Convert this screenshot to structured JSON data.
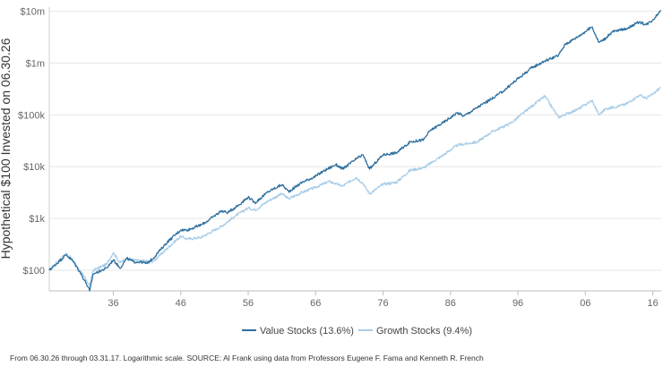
{
  "chart_data": {
    "type": "line",
    "title": "",
    "ylabel": "Hypothetical $100 Invested on 06.30.26",
    "xlabel": "",
    "yscale": "log",
    "ylim": [
      40,
      12000000
    ],
    "xlim": [
      1926.5,
      2017.25
    ],
    "y_ticks": [
      {
        "value": 100,
        "label": "$100"
      },
      {
        "value": 1000,
        "label": "$1k"
      },
      {
        "value": 10000,
        "label": "$10k"
      },
      {
        "value": 100000,
        "label": "$100k"
      },
      {
        "value": 1000000,
        "label": "$1m"
      },
      {
        "value": 10000000,
        "label": "$10m"
      }
    ],
    "x_ticks": [
      {
        "value": 1936,
        "label": "36"
      },
      {
        "value": 1946,
        "label": "46"
      },
      {
        "value": 1956,
        "label": "56"
      },
      {
        "value": 1966,
        "label": "66"
      },
      {
        "value": 1976,
        "label": "76"
      },
      {
        "value": 1986,
        "label": "86"
      },
      {
        "value": 1996,
        "label": "96"
      },
      {
        "value": 2006,
        "label": "06"
      },
      {
        "value": 2016,
        "label": "16"
      }
    ],
    "grid": "horizontal",
    "legend": "bottom-center",
    "series": [
      {
        "name": "Value Stocks (13.6%)",
        "color": "#2e6f9e",
        "x": [
          1926.5,
          1928,
          1929,
          1930,
          1931,
          1932,
          1932.5,
          1933,
          1933.5,
          1935,
          1936,
          1937,
          1938,
          1939,
          1940,
          1941,
          1942,
          1943,
          1944,
          1946,
          1947,
          1949,
          1950,
          1952,
          1953,
          1955,
          1956,
          1957,
          1959,
          1961,
          1962,
          1964,
          1966,
          1967,
          1969,
          1970,
          1972,
          1973,
          1974,
          1976,
          1978,
          1980,
          1982,
          1983,
          1985,
          1987,
          1988,
          1990,
          1992,
          1994,
          1996,
          1998,
          2000,
          2002,
          2003,
          2005,
          2007,
          2008,
          2009,
          2010,
          2012,
          2014,
          2015,
          2016,
          2017.2
        ],
        "y": [
          100,
          150,
          200,
          150,
          95,
          55,
          40,
          85,
          90,
          110,
          160,
          110,
          170,
          145,
          145,
          135,
          175,
          250,
          350,
          600,
          600,
          750,
          900,
          1400,
          1300,
          2000,
          2600,
          2000,
          3300,
          4500,
          3300,
          5000,
          6500,
          8000,
          11000,
          9000,
          14000,
          17000,
          9000,
          17000,
          18500,
          30000,
          33000,
          50000,
          72000,
          110000,
          95000,
          140000,
          200000,
          300000,
          500000,
          800000,
          1100000,
          1400000,
          2300000,
          3300000,
          5000000,
          2500000,
          3000000,
          4000000,
          4600000,
          6200000,
          5500000,
          6800000,
          10500000
        ]
      },
      {
        "name": "Growth Stocks (9.4%)",
        "color": "#a8cde8",
        "x": [
          1926.5,
          1928,
          1929,
          1930,
          1931,
          1932,
          1932.5,
          1933,
          1935,
          1936,
          1937,
          1938,
          1940,
          1942,
          1943,
          1945,
          1946,
          1947,
          1949,
          1952,
          1954,
          1956,
          1957,
          1959,
          1961,
          1962,
          1964,
          1966,
          1968,
          1970,
          1972,
          1973,
          1974,
          1976,
          1978,
          1980,
          1982,
          1985,
          1987,
          1990,
          1992,
          1995,
          1998,
          2000,
          2002,
          2005,
          2007,
          2008,
          2009,
          2012,
          2014,
          2015,
          2016,
          2017.2
        ],
        "y": [
          100,
          160,
          210,
          160,
          100,
          65,
          50,
          100,
          130,
          220,
          140,
          170,
          150,
          150,
          200,
          350,
          450,
          400,
          430,
          700,
          1100,
          1600,
          1450,
          2200,
          3000,
          2400,
          3200,
          4000,
          5200,
          4200,
          6200,
          4800,
          3000,
          4600,
          5000,
          8500,
          9500,
          17000,
          26000,
          30000,
          46000,
          70000,
          145000,
          230000,
          90000,
          130000,
          190000,
          100000,
          130000,
          160000,
          240000,
          210000,
          250000,
          340000
        ]
      }
    ]
  },
  "footnote": "From 06.30.26 through 03.31.17. Logarithmic scale. SOURCE: Al Frank using data from Professors Eugene F. Fama and Kenneth R. French"
}
